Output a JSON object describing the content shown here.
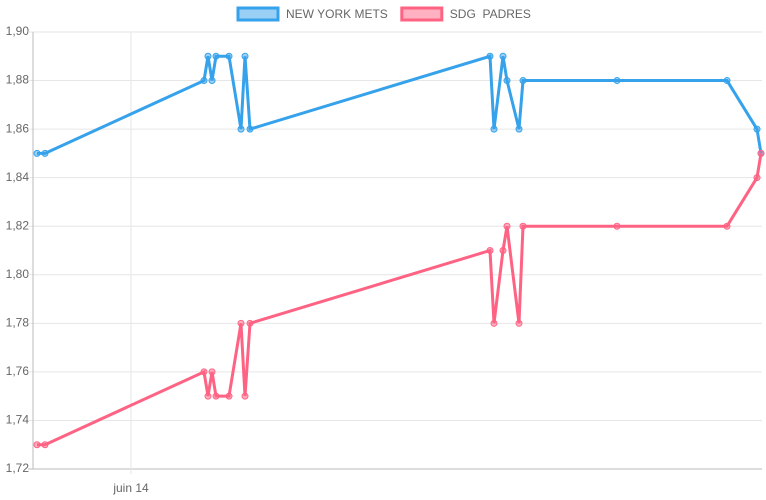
{
  "chart_data": {
    "type": "line",
    "x": [
      13.06,
      13.14,
      14.73,
      14.77,
      14.81,
      14.85,
      14.98,
      15.1,
      15.14,
      15.19,
      17.59,
      17.63,
      17.72,
      17.76,
      17.88,
      17.92,
      18.86,
      19.96,
      20.26,
      20.3
    ],
    "series": [
      {
        "name": "NEW YORK METS",
        "color": "#36a2eb",
        "values": [
          1.85,
          1.85,
          1.88,
          1.89,
          1.88,
          1.89,
          1.89,
          1.86,
          1.89,
          1.86,
          1.89,
          1.86,
          1.89,
          1.88,
          1.86,
          1.88,
          1.88,
          1.88,
          1.86,
          1.85
        ]
      },
      {
        "name": "SDG  PADRES",
        "color": "#ff6384",
        "values": [
          1.73,
          1.73,
          1.76,
          1.75,
          1.76,
          1.75,
          1.75,
          1.78,
          1.75,
          1.78,
          1.81,
          1.78,
          1.81,
          1.82,
          1.78,
          1.82,
          1.82,
          1.82,
          1.84,
          1.85
        ]
      }
    ],
    "xlim": [
      13.02,
      20.31
    ],
    "xticks": [
      {
        "value": 14,
        "label": "juin 14"
      }
    ],
    "ylim": [
      1.72,
      1.9
    ],
    "yticks": [
      {
        "value": 1.72,
        "label": "1,72"
      },
      {
        "value": 1.74,
        "label": "1,74"
      },
      {
        "value": 1.76,
        "label": "1,76"
      },
      {
        "value": 1.78,
        "label": "1,78"
      },
      {
        "value": 1.8,
        "label": "1,80"
      },
      {
        "value": 1.82,
        "label": "1,82"
      },
      {
        "value": 1.84,
        "label": "1,84"
      },
      {
        "value": 1.86,
        "label": "1,86"
      },
      {
        "value": 1.88,
        "label": "1,88"
      },
      {
        "value": 1.9,
        "label": "1,90"
      }
    ],
    "grid": true,
    "legend": "top"
  }
}
